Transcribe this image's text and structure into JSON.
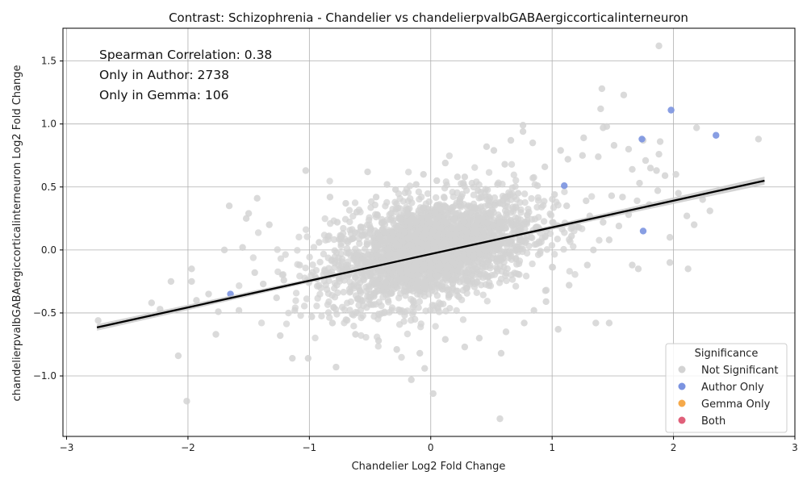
{
  "chart_data": {
    "type": "scatter",
    "title": "Contrast: Schizophrenia - Chandelier vs chandelierpvalbGABAergiccorticalinterneuron",
    "xlabel": "Chandelier Log2 Fold Change",
    "ylabel": "chandelierpvalbGABAergiccorticalinterneuron Log2 Fold Change",
    "xlim": [
      -3.03,
      3.0
    ],
    "ylim": [
      -1.48,
      1.76
    ],
    "xticks": [
      -3,
      -2,
      -1,
      0,
      1,
      2,
      3
    ],
    "yticks": [
      -1.0,
      -0.5,
      0.0,
      0.5,
      1.0,
      1.5
    ],
    "xtick_labels": [
      "−3",
      "−2",
      "−1",
      "0",
      "1",
      "2",
      "3"
    ],
    "ytick_labels": [
      "−1.0",
      "−0.5",
      "0.0",
      "0.5",
      "1.0",
      "1.5"
    ],
    "grid": true,
    "annotations": [
      "Spearman Correlation: 0.38",
      "Only in Author: 2738",
      "Only in Gemma: 106"
    ],
    "legend": {
      "title": "Significance",
      "placement": "lower-right",
      "entries": [
        {
          "name": "Not Significant",
          "color": "#d3d3d3"
        },
        {
          "name": "Author Only",
          "color": "#7b93e0"
        },
        {
          "name": "Gemma Only",
          "color": "#f5a94a"
        },
        {
          "name": "Both",
          "color": "#e0607a"
        }
      ]
    },
    "regression": {
      "x": [
        -2.75,
        2.75
      ],
      "y": [
        -0.615,
        0.55
      ],
      "color": "#000000",
      "band_color": "#c8c8c8"
    },
    "series": [
      {
        "name": "Not Significant",
        "color": "#d3d3d3",
        "points": [
          [
            1.88,
            1.62
          ],
          [
            1.59,
            1.23
          ],
          [
            1.41,
            1.28
          ],
          [
            1.4,
            1.12
          ],
          [
            0.76,
            0.99
          ],
          [
            1.45,
            0.98
          ],
          [
            1.42,
            0.97
          ],
          [
            2.19,
            0.97
          ],
          [
            0.76,
            0.94
          ],
          [
            2.7,
            0.88
          ],
          [
            1.26,
            0.89
          ],
          [
            1.75,
            0.87
          ],
          [
            1.89,
            0.86
          ],
          [
            0.66,
            0.87
          ],
          [
            1.51,
            0.83
          ],
          [
            0.84,
            0.85
          ],
          [
            0.46,
            0.82
          ],
          [
            0.52,
            0.79
          ],
          [
            1.88,
            0.76
          ],
          [
            1.07,
            0.79
          ],
          [
            1.63,
            0.8
          ],
          [
            1.66,
            0.64
          ],
          [
            1.77,
            0.71
          ],
          [
            1.93,
            0.59
          ],
          [
            2.02,
            0.6
          ],
          [
            1.81,
            0.65
          ],
          [
            1.86,
            0.63
          ],
          [
            2.11,
            0.27
          ],
          [
            2.17,
            0.2
          ],
          [
            2.3,
            0.31
          ],
          [
            2.24,
            0.4
          ],
          [
            1.97,
            0.1
          ],
          [
            1.97,
            -0.1
          ],
          [
            1.71,
            -0.15
          ],
          [
            1.66,
            -0.12
          ],
          [
            2.12,
            -0.15
          ],
          [
            1.47,
            -0.58
          ],
          [
            1.36,
            -0.58
          ],
          [
            1.05,
            -0.63
          ],
          [
            0.58,
            -0.82
          ],
          [
            0.57,
            -1.34
          ],
          [
            0.02,
            -1.14
          ],
          [
            -0.16,
            -1.03
          ],
          [
            -0.05,
            -0.94
          ],
          [
            -2.74,
            -0.56
          ],
          [
            -2.3,
            -0.42
          ],
          [
            -2.23,
            -0.47
          ],
          [
            -2.14,
            -0.25
          ],
          [
            -2.08,
            -0.84
          ],
          [
            -2.01,
            -1.2
          ],
          [
            -1.97,
            -0.15
          ],
          [
            -1.97,
            -0.25
          ],
          [
            -1.93,
            -0.4
          ],
          [
            -1.83,
            -0.35
          ],
          [
            -1.77,
            -0.67
          ],
          [
            -1.75,
            -0.49
          ],
          [
            -1.7,
            0.0
          ],
          [
            -1.66,
            0.35
          ],
          [
            -1.58,
            -0.48
          ],
          [
            -1.55,
            0.02
          ],
          [
            -1.52,
            0.25
          ],
          [
            -1.5,
            0.29
          ],
          [
            -1.43,
            0.41
          ],
          [
            -1.33,
            0.2
          ],
          [
            -1.03,
            0.63
          ],
          [
            -1.24,
            -0.68
          ],
          [
            -1.14,
            -0.86
          ],
          [
            -1.01,
            -0.86
          ],
          [
            -0.78,
            -0.93
          ],
          [
            -0.83,
            0.42
          ],
          [
            -0.7,
            0.37
          ],
          [
            -0.52,
            0.62
          ],
          [
            -0.36,
            0.52
          ],
          [
            -0.06,
            0.6
          ],
          [
            0.12,
            0.69
          ],
          [
            0.28,
            0.58
          ],
          [
            0.61,
            0.68
          ],
          [
            0.94,
            0.66
          ],
          [
            1.25,
            0.75
          ],
          [
            1.38,
            0.74
          ],
          [
            1.13,
            0.72
          ],
          [
            1.49,
            0.43
          ],
          [
            1.7,
            0.39
          ],
          [
            1.58,
            0.42
          ],
          [
            1.31,
            0.27
          ],
          [
            1.22,
            0.18
          ],
          [
            1.16,
            0.11
          ],
          [
            1.34,
            0.0
          ],
          [
            1.29,
            -0.12
          ],
          [
            1.14,
            -0.28
          ],
          [
            0.95,
            -0.41
          ],
          [
            0.85,
            -0.48
          ],
          [
            0.77,
            -0.58
          ],
          [
            0.62,
            -0.65
          ],
          [
            0.4,
            -0.7
          ],
          [
            0.28,
            -0.77
          ],
          [
            0.12,
            -0.71
          ],
          [
            -0.09,
            -0.82
          ],
          [
            -0.28,
            -0.79
          ],
          [
            -0.43,
            -0.72
          ],
          [
            -0.62,
            -0.67
          ],
          [
            -0.81,
            -0.58
          ],
          [
            -0.98,
            -0.53
          ],
          [
            -1.12,
            -0.48
          ],
          [
            -1.27,
            -0.38
          ],
          [
            -1.38,
            -0.27
          ],
          [
            -1.45,
            -0.18
          ],
          [
            -1.21,
            -0.24
          ],
          [
            -1.08,
            -0.12
          ],
          [
            -0.92,
            0.06
          ],
          [
            -0.77,
            0.22
          ],
          [
            -0.61,
            0.3
          ],
          [
            -0.45,
            0.42
          ],
          [
            -0.29,
            0.48
          ],
          [
            -0.12,
            0.52
          ],
          [
            0.05,
            0.55
          ],
          [
            0.22,
            0.58
          ],
          [
            0.39,
            0.47
          ],
          [
            0.55,
            0.52
          ],
          [
            0.72,
            0.45
          ],
          [
            0.88,
            0.51
          ],
          [
            1.02,
            0.44
          ],
          [
            1.12,
            0.35
          ],
          [
            1.28,
            0.39
          ],
          [
            1.42,
            0.22
          ],
          [
            1.55,
            0.19
          ],
          [
            1.47,
            0.08
          ],
          [
            1.63,
            0.28
          ],
          [
            1.8,
            0.36
          ],
          [
            1.87,
            0.47
          ],
          [
            1.72,
            0.53
          ],
          [
            2.04,
            0.45
          ]
        ]
      },
      {
        "name": "Author Only",
        "color": "#7b93e0",
        "points": [
          [
            1.98,
            1.11
          ],
          [
            2.35,
            0.91
          ],
          [
            1.74,
            0.88
          ],
          [
            1.1,
            0.51
          ],
          [
            1.75,
            0.15
          ],
          [
            -1.65,
            -0.35
          ]
        ]
      },
      {
        "name": "Gemma Only",
        "color": "#f5a94a",
        "points": []
      },
      {
        "name": "Both",
        "color": "#e0607a",
        "points": []
      }
    ]
  }
}
